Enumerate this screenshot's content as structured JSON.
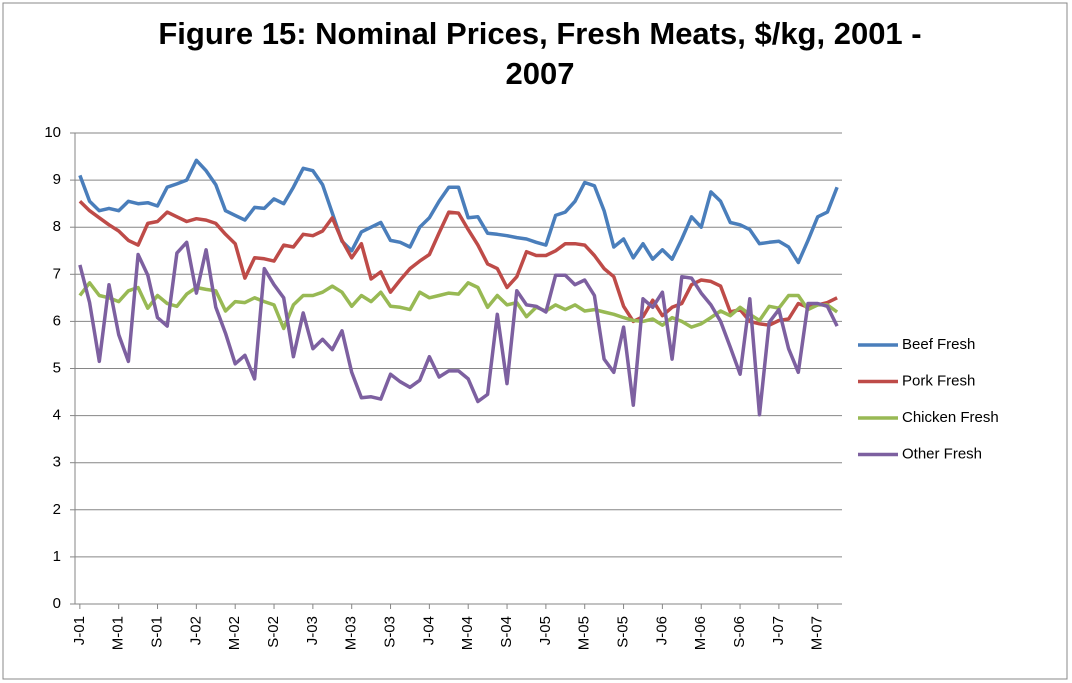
{
  "chart_data": {
    "type": "line",
    "title": "Figure 15: Nominal Prices, Fresh Meats, $/kg, 2001 - 2007",
    "categories": [
      "J-01",
      null,
      null,
      null,
      "M-01",
      null,
      null,
      null,
      "S-01",
      null,
      null,
      null,
      "J-02",
      null,
      null,
      null,
      "M-02",
      null,
      null,
      null,
      "S-02",
      null,
      null,
      null,
      "J-03",
      null,
      null,
      null,
      "M-03",
      null,
      null,
      null,
      "S-03",
      null,
      null,
      null,
      "J-04",
      null,
      null,
      null,
      "M-04",
      null,
      null,
      null,
      "S-04",
      null,
      null,
      null,
      "J-05",
      null,
      null,
      null,
      "M-05",
      null,
      null,
      null,
      "S-05",
      null,
      null,
      null,
      "J-06",
      null,
      null,
      null,
      "M-06",
      null,
      null,
      null,
      "S-06",
      null,
      null,
      null,
      "J-07",
      null,
      null,
      null,
      "M-07",
      null,
      null
    ],
    "ylim": [
      0,
      10
    ],
    "yticks": [
      0,
      1,
      2,
      3,
      4,
      5,
      6,
      7,
      8,
      9,
      10
    ],
    "grid": true,
    "legend": "right",
    "series": [
      {
        "name": "Beef Fresh",
        "color": "#4a7ebb",
        "values": [
          9.1,
          8.55,
          8.35,
          8.4,
          8.35,
          8.55,
          8.5,
          8.52,
          8.45,
          8.85,
          8.92,
          9.0,
          9.42,
          9.2,
          8.9,
          8.35,
          8.25,
          8.15,
          8.42,
          8.4,
          8.6,
          8.5,
          8.85,
          9.25,
          9.2,
          8.9,
          8.3,
          7.7,
          7.5,
          7.9,
          8.0,
          8.1,
          7.72,
          7.68,
          7.58,
          8.0,
          8.2,
          8.55,
          8.85,
          8.85,
          8.2,
          8.22,
          7.87,
          7.85,
          7.82,
          7.78,
          7.75,
          7.68,
          7.62,
          8.25,
          8.32,
          8.55,
          8.95,
          8.88,
          8.35,
          7.58,
          7.75,
          7.35,
          7.65,
          7.32,
          7.52,
          7.32,
          7.75,
          8.22,
          8.0,
          8.75,
          8.55,
          8.1,
          8.05,
          7.95,
          7.65,
          7.68,
          7.7,
          7.58,
          7.25,
          7.72,
          8.22,
          8.32,
          8.85
        ]
      },
      {
        "name": "Pork Fresh",
        "color": "#be4b48",
        "values": [
          8.55,
          8.35,
          8.2,
          8.05,
          7.92,
          7.72,
          7.62,
          8.08,
          8.12,
          8.32,
          8.22,
          8.12,
          8.18,
          8.15,
          8.08,
          7.85,
          7.65,
          6.92,
          7.35,
          7.33,
          7.28,
          7.62,
          7.58,
          7.85,
          7.82,
          7.92,
          8.2,
          7.72,
          7.35,
          7.65,
          6.9,
          7.05,
          6.62,
          6.88,
          7.12,
          7.28,
          7.42,
          7.88,
          8.32,
          8.3,
          7.95,
          7.62,
          7.22,
          7.12,
          6.72,
          6.95,
          7.48,
          7.4,
          7.4,
          7.5,
          7.65,
          7.65,
          7.62,
          7.4,
          7.12,
          6.95,
          6.32,
          6.0,
          6.1,
          6.45,
          6.12,
          6.3,
          6.38,
          6.78,
          6.88,
          6.85,
          6.75,
          6.2,
          6.25,
          6.0,
          5.95,
          5.92,
          6.02,
          6.05,
          6.38,
          6.3,
          6.35,
          6.4,
          6.5
        ]
      },
      {
        "name": "Chicken Fresh",
        "color": "#98b954",
        "values": [
          6.55,
          6.82,
          6.55,
          6.5,
          6.42,
          6.65,
          6.72,
          6.28,
          6.55,
          6.38,
          6.32,
          6.58,
          6.72,
          6.68,
          6.65,
          6.22,
          6.42,
          6.4,
          6.5,
          6.42,
          6.35,
          5.85,
          6.35,
          6.55,
          6.55,
          6.62,
          6.75,
          6.62,
          6.32,
          6.55,
          6.42,
          6.62,
          6.32,
          6.3,
          6.25,
          6.62,
          6.5,
          6.55,
          6.6,
          6.58,
          6.82,
          6.72,
          6.3,
          6.55,
          6.35,
          6.4,
          6.1,
          6.3,
          6.22,
          6.35,
          6.25,
          6.35,
          6.22,
          6.25,
          6.2,
          6.15,
          6.08,
          6.02,
          6.0,
          6.05,
          5.92,
          6.08,
          6.0,
          5.88,
          5.95,
          6.08,
          6.22,
          6.12,
          6.3,
          6.15,
          6.02,
          6.32,
          6.28,
          6.55,
          6.55,
          6.25,
          6.35,
          6.35,
          6.2
        ]
      },
      {
        "name": "Other Fresh",
        "color": "#7d60a0",
        "values": [
          7.2,
          6.4,
          5.15,
          6.78,
          5.72,
          5.15,
          7.42,
          6.98,
          6.08,
          5.9,
          7.45,
          7.68,
          6.6,
          7.52,
          6.3,
          5.75,
          5.1,
          5.28,
          4.78,
          7.12,
          6.78,
          6.5,
          5.25,
          6.18,
          5.42,
          5.62,
          5.4,
          5.8,
          4.92,
          4.38,
          4.4,
          4.35,
          4.88,
          4.72,
          4.6,
          4.75,
          5.25,
          4.82,
          4.95,
          4.95,
          4.78,
          4.3,
          4.45,
          6.15,
          4.68,
          6.65,
          6.35,
          6.32,
          6.2,
          6.98,
          6.98,
          6.78,
          6.88,
          6.55,
          5.2,
          4.92,
          5.88,
          4.22,
          6.48,
          6.3,
          6.62,
          5.2,
          6.95,
          6.92,
          6.6,
          6.35,
          6.0,
          5.45,
          4.88,
          6.48,
          4.02,
          5.98,
          6.25,
          5.42,
          4.92,
          6.38,
          6.38,
          6.32,
          5.9
        ]
      }
    ]
  }
}
